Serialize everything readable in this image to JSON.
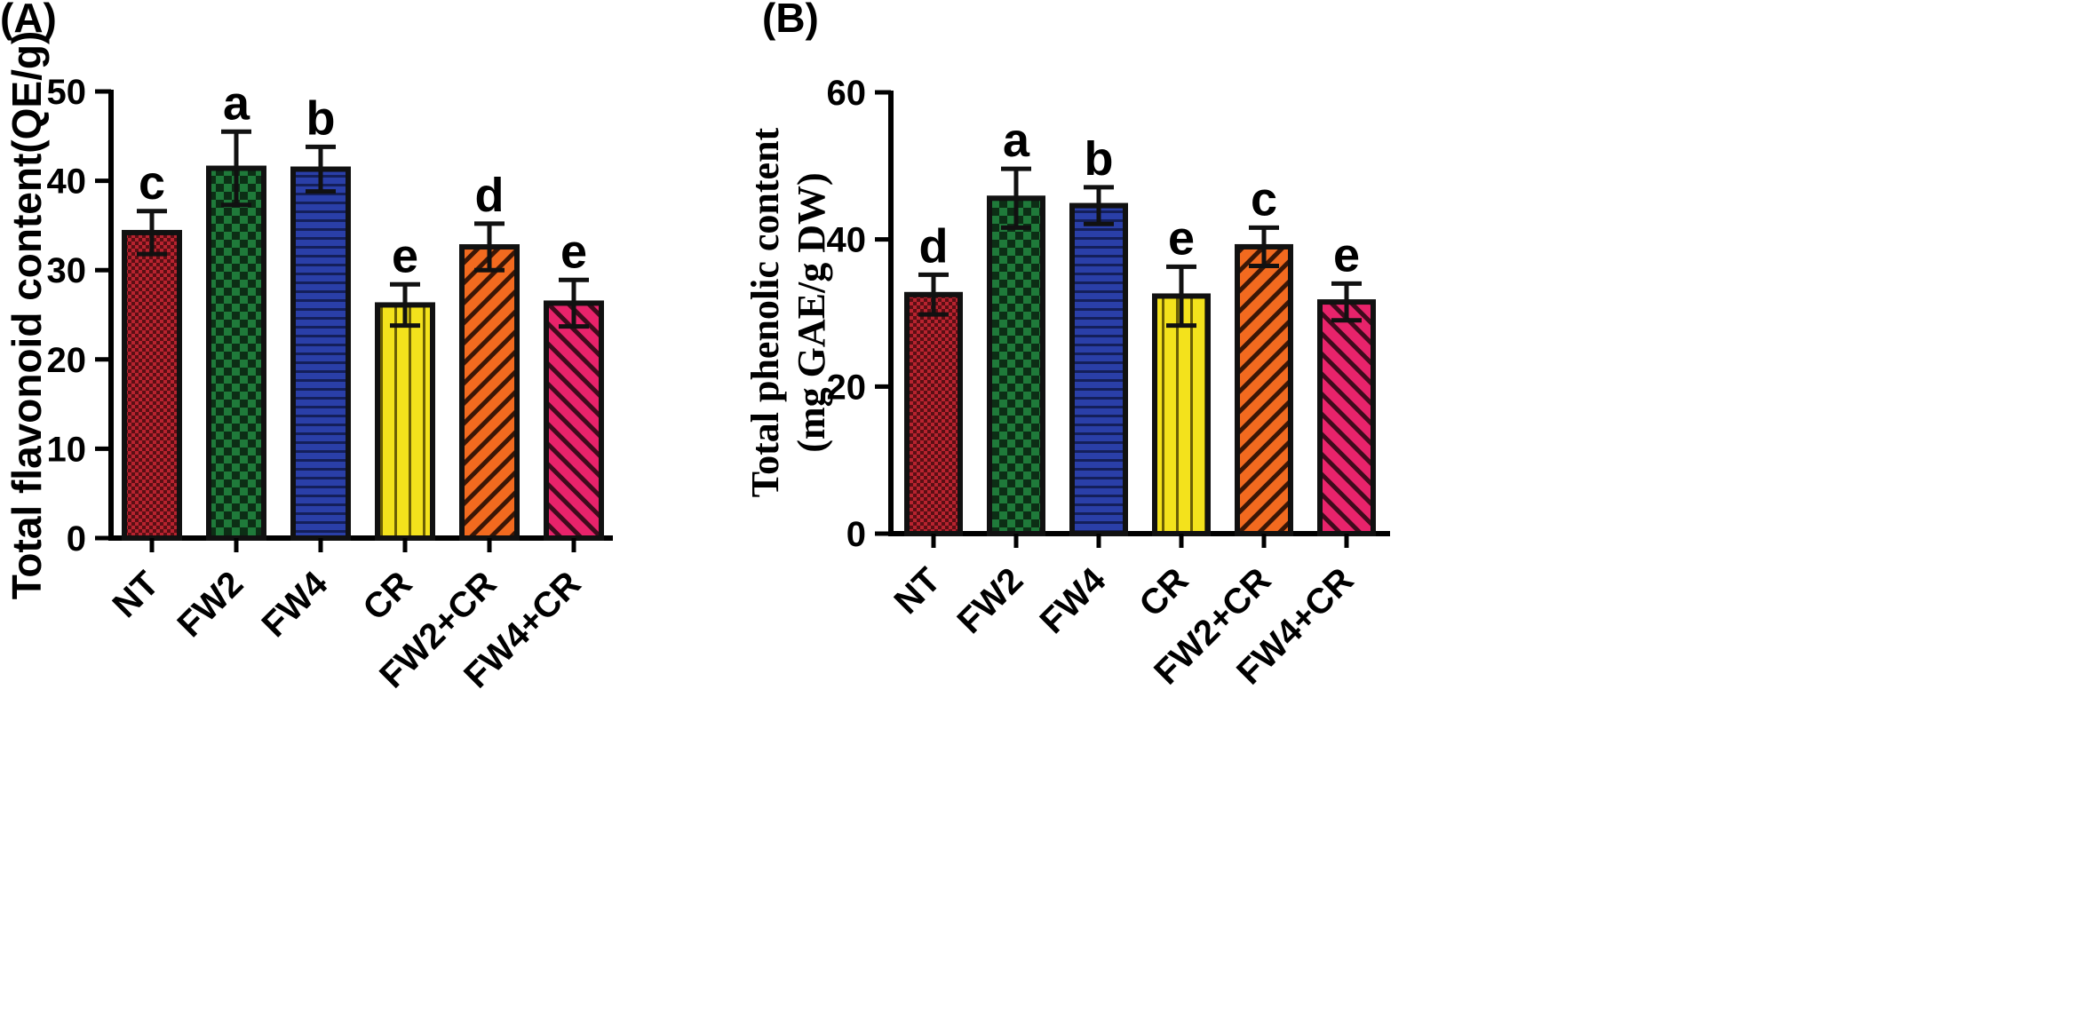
{
  "chart_data": [
    {
      "panel": "(A)",
      "type": "bar",
      "title": "",
      "xlabel": "",
      "ylabel": "Total flavonoid content(QE/g)",
      "ylim": [
        0,
        50
      ],
      "yticks": [
        0,
        10,
        20,
        30,
        40,
        50
      ],
      "categories": [
        "NT",
        "FW2",
        "FW4",
        "CR",
        "FW2+CR",
        "FW4+CR"
      ],
      "values": [
        34.2,
        41.4,
        41.3,
        26.1,
        32.6,
        26.3
      ],
      "errors": [
        2.4,
        4.1,
        2.5,
        2.3,
        2.6,
        2.6
      ],
      "significance": [
        "c",
        "a",
        "b",
        "e",
        "d",
        "e"
      ],
      "colors": [
        "#b8232f",
        "#1f7a3a",
        "#2a3fa8",
        "#f3e21c",
        "#f26a1f",
        "#e8236b"
      ],
      "patterns": [
        "checker-fine",
        "checker",
        "horizontal",
        "vertical",
        "diagonal",
        "diagonal-back"
      ],
      "grid": false
    },
    {
      "panel": "(B)",
      "type": "bar",
      "title": "",
      "xlabel": "",
      "ylabel_line1": "Total phenolic content",
      "ylabel_line2": "(mg GAE/g DW)",
      "ylim": [
        0,
        60
      ],
      "yticks": [
        0,
        20,
        40,
        60
      ],
      "categories": [
        "NT",
        "FW2",
        "FW4",
        "CR",
        "FW2+CR",
        "FW4+CR"
      ],
      "values": [
        32.5,
        45.6,
        44.6,
        32.3,
        39.0,
        31.5
      ],
      "errors": [
        2.7,
        4.0,
        2.5,
        4.0,
        2.6,
        2.5
      ],
      "significance": [
        "d",
        "a",
        "b",
        "e",
        "c",
        "e"
      ],
      "colors": [
        "#b8232f",
        "#1f7a3a",
        "#2a3fa8",
        "#f3e21c",
        "#f26a1f",
        "#e8236b"
      ],
      "patterns": [
        "checker-fine",
        "checker",
        "horizontal",
        "vertical",
        "diagonal",
        "diagonal-back"
      ],
      "grid": false
    }
  ]
}
